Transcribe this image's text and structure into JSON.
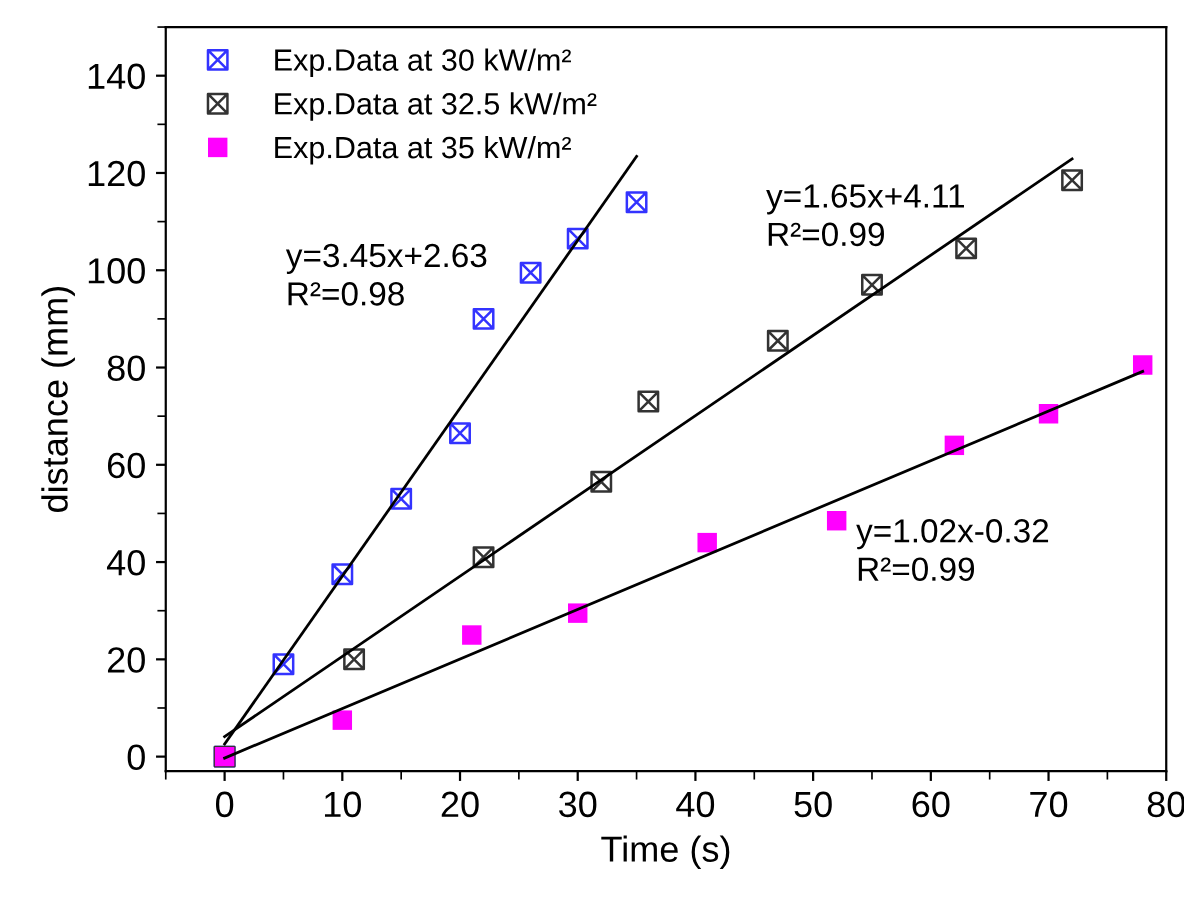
{
  "chart_data": {
    "type": "scatter",
    "xlabel": "Time (s)",
    "ylabel": "distance (mm)",
    "xlim": [
      -5,
      80
    ],
    "ylim": [
      -3,
      150
    ],
    "xticks": [
      0,
      10,
      20,
      30,
      40,
      50,
      60,
      70,
      80
    ],
    "yticks": [
      0,
      20,
      40,
      60,
      80,
      100,
      120,
      140
    ],
    "grid": false,
    "legend": "top left",
    "series": [
      {
        "name": "Exp.Data at 30 kW/m²",
        "color": "#3333ff",
        "marker": "cross",
        "x": [
          0,
          5,
          10,
          15,
          20,
          22,
          26,
          30,
          35
        ],
        "values": [
          0,
          19,
          37.5,
          53,
          66.5,
          90,
          99.5,
          106.5,
          114
        ]
      },
      {
        "name": "Exp.Data at 32.5 kW/m²",
        "color": "#333333",
        "marker": "cross",
        "x": [
          0,
          11,
          22,
          32,
          36,
          47,
          55,
          63,
          72
        ],
        "values": [
          0,
          20,
          41,
          56.5,
          73,
          85.5,
          97,
          104.5,
          118.5
        ]
      },
      {
        "name": "Exp.Data at 35 kW/m²",
        "color": "#ff00ff",
        "marker": "square",
        "x": [
          0,
          10,
          21,
          30,
          41,
          52,
          62,
          70,
          78
        ],
        "values": [
          0,
          7.5,
          25,
          29.5,
          44,
          48.5,
          64,
          70.5,
          80.5
        ]
      },
      {
        "type": "line",
        "color": "#000000",
        "marker": "none",
        "x": [
          0,
          35
        ],
        "values": [
          2.6,
          123.4
        ]
      },
      {
        "type": "line",
        "color": "#000000",
        "marker": "none",
        "x": [
          0,
          72
        ],
        "values": [
          4.1,
          122.9
        ]
      },
      {
        "type": "line",
        "color": "#000000",
        "marker": "none",
        "x": [
          0,
          78
        ],
        "values": [
          -0.3,
          79.2
        ]
      }
    ],
    "annotations": [
      "y=3.45x+2.63\nR²=0.98",
      "y=1.65x+4.11\nR²=0.99",
      "y=1.02x-0.32\nR²=0.99"
    ]
  }
}
